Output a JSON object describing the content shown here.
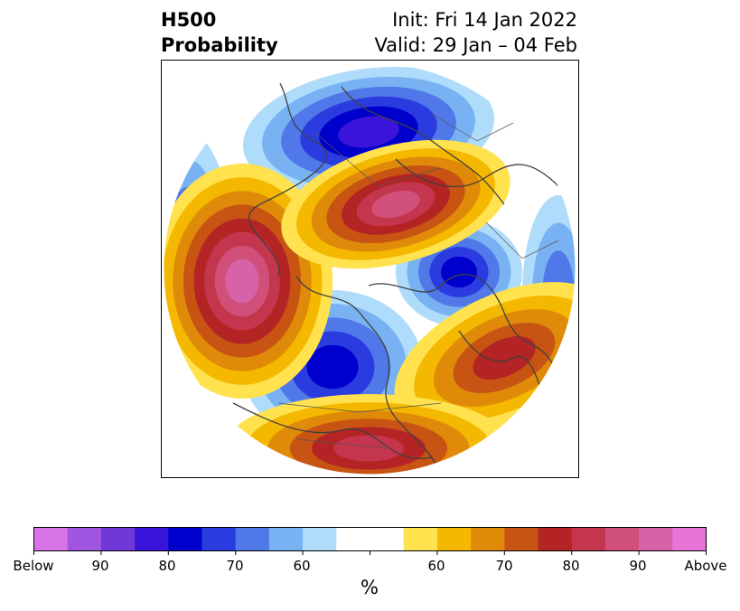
{
  "header": {
    "variable": "H500",
    "product": "Probability",
    "init": "Init: Fri 14 Jan 2022",
    "valid": "Valid: 29 Jan – 04 Feb"
  },
  "colorbar": {
    "unit": "%",
    "colors": [
      "#d874e8",
      "#a056e0",
      "#7038d8",
      "#3a14d8",
      "#0000cc",
      "#2a3ce0",
      "#5078e8",
      "#78b2f2",
      "#aedcfa",
      "#ffffff",
      "#ffffff",
      "#ffe24e",
      "#f4b800",
      "#e08a0a",
      "#c85414",
      "#b42424",
      "#c4364e",
      "#d0507a",
      "#d862a8",
      "#e874d8"
    ],
    "tick_labels": [
      "Below",
      "90",
      "80",
      "70",
      "60",
      "60",
      "70",
      "80",
      "90",
      "Above"
    ]
  },
  "palette": {
    "below_strong": "#0000cc",
    "below_core": "#5a2ac8",
    "above_strong": "#b42424",
    "above_core": "#d862a8",
    "coast": "#404040"
  }
}
